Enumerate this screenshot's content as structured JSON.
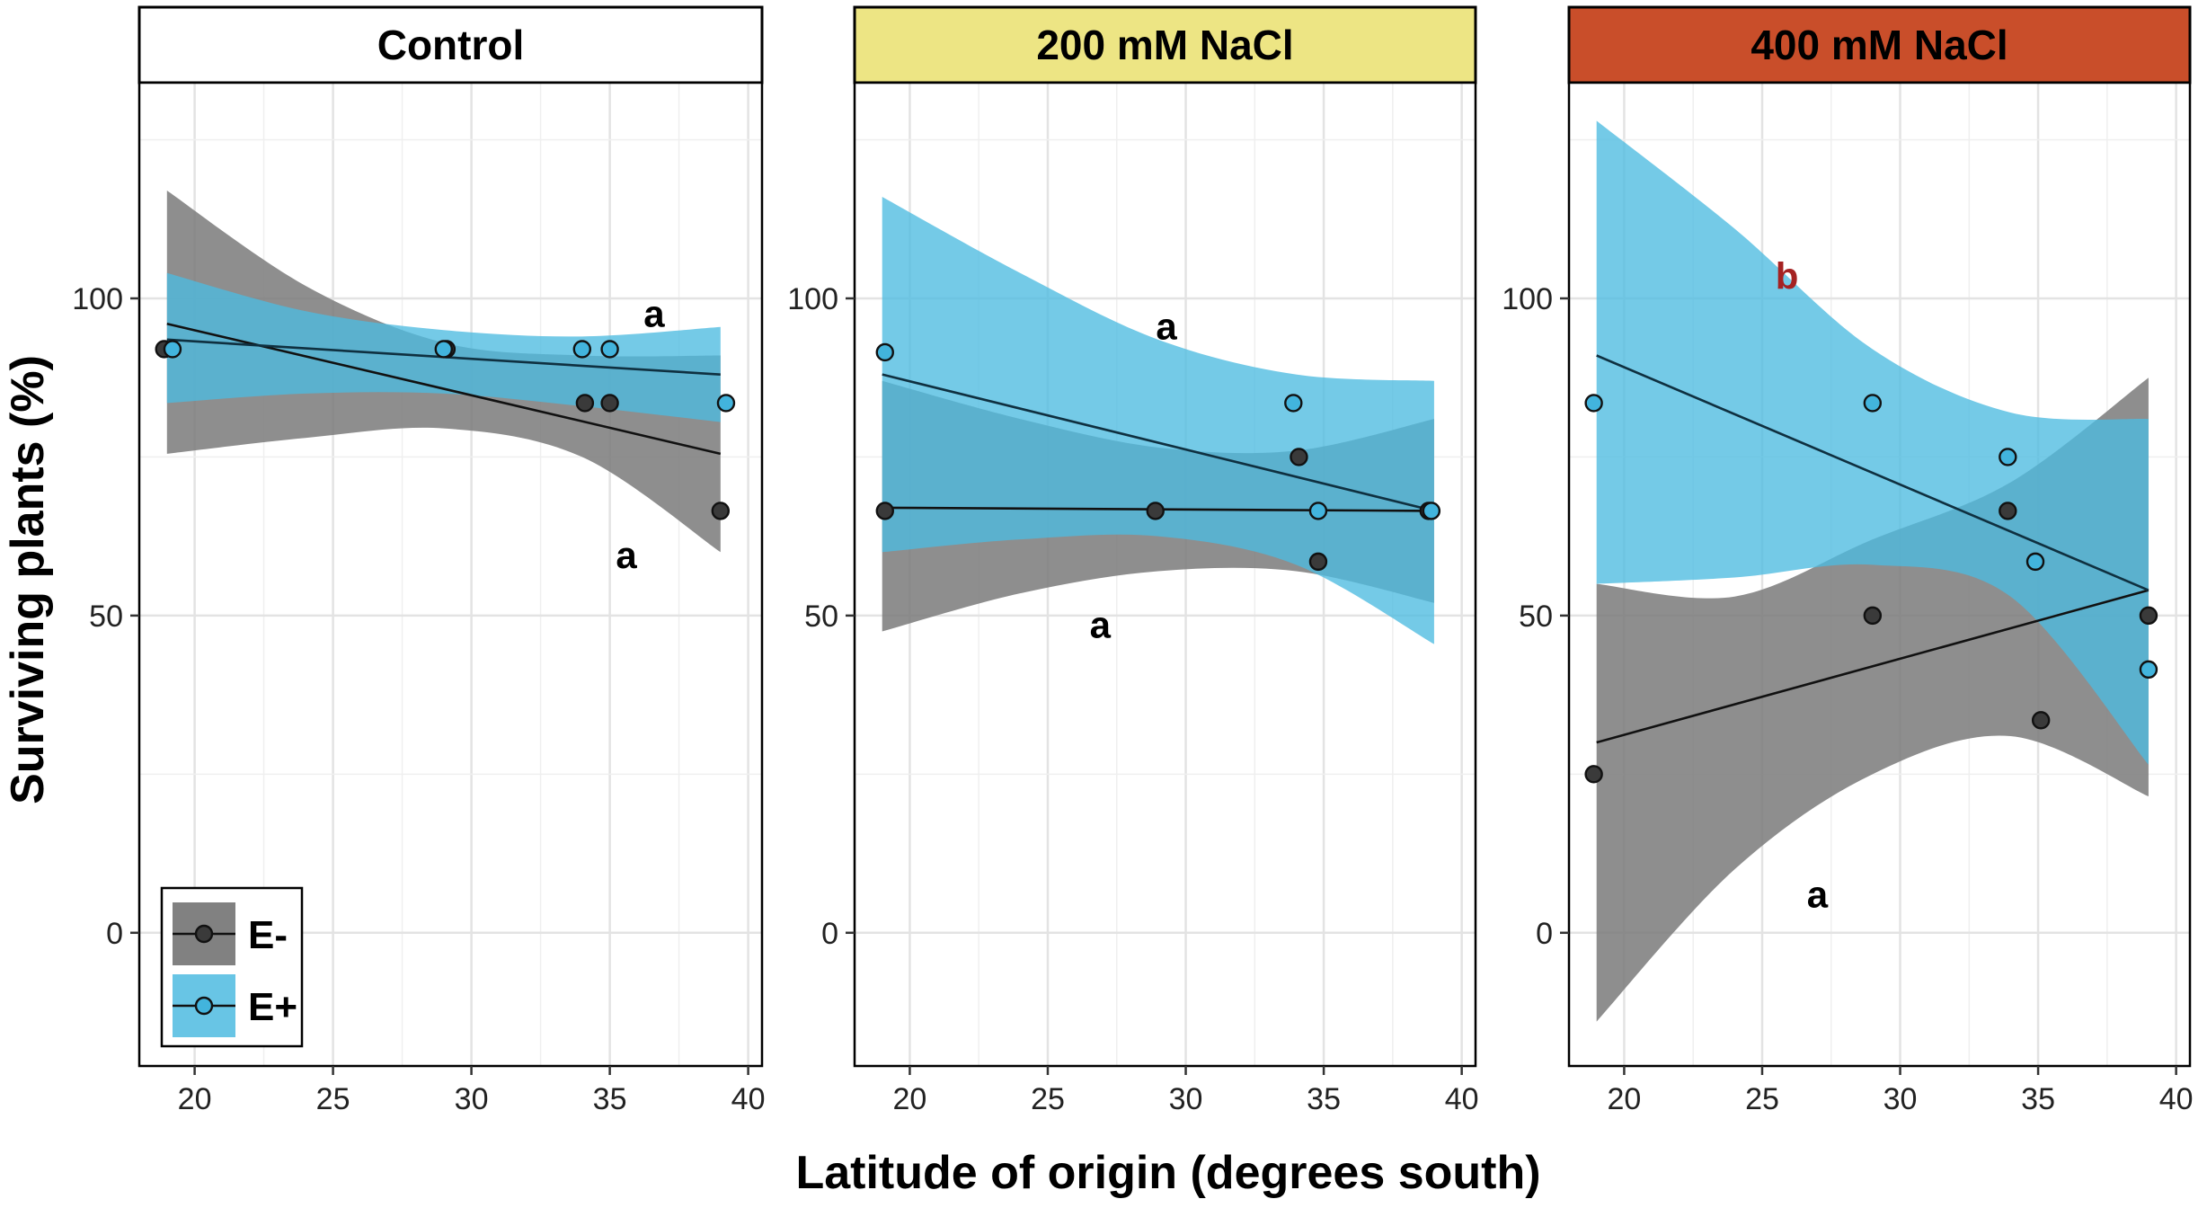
{
  "colors": {
    "e_minus_band": "#7a7a7a",
    "e_plus_band": "#4dbbe0",
    "e_minus_point": "#3a3a3a",
    "e_plus_point": "#42b4dd",
    "strip_control": "#ffffff",
    "strip_200": "#ede584",
    "strip_400": "#c94e2a",
    "annot_black": "#000000",
    "annot_red": "#a52222"
  },
  "chart_data": {
    "type": "scatter",
    "title": "",
    "xlabel": "Latitude of origin (degrees south)",
    "ylabel": "Surviving plants (%)",
    "xlim": [
      18,
      40.5
    ],
    "ylim": [
      -21,
      134
    ],
    "x_ticks": [
      20,
      25,
      30,
      35,
      40
    ],
    "y_ticks": [
      0,
      50,
      100
    ],
    "legend": {
      "position": "bottom-left",
      "entries": [
        {
          "label": "E-",
          "series": "E-"
        },
        {
          "label": "E+",
          "series": "E+"
        }
      ]
    },
    "panels": [
      {
        "strip": "Control",
        "strip_color": "#ffffff",
        "strip_text_color": "#000000",
        "series": [
          {
            "name": "E-",
            "points": [
              [
                18.9,
                92
              ],
              [
                29.1,
                92
              ],
              [
                34.1,
                83.5
              ],
              [
                35.0,
                83.5
              ],
              [
                39.0,
                66.5
              ]
            ],
            "fit": [
              [
                19.0,
                96
              ],
              [
                39.0,
                75.5
              ]
            ],
            "ci": {
              "x": [
                19,
                24,
                29,
                34,
                39
              ],
              "lower": [
                75.5,
                78,
                79.5,
                75,
                60
              ],
              "upper": [
                117,
                102,
                93,
                91,
                91
              ]
            }
          },
          {
            "name": "E+",
            "points": [
              [
                19.2,
                92
              ],
              [
                29.0,
                92
              ],
              [
                34.0,
                92
              ],
              [
                35.0,
                92
              ],
              [
                39.2,
                83.5
              ]
            ],
            "fit": [
              [
                19.0,
                93.5
              ],
              [
                39.0,
                88
              ]
            ],
            "ci": {
              "x": [
                19,
                24,
                29,
                34,
                39
              ],
              "lower": [
                83.5,
                85,
                85,
                83,
                80.5
              ],
              "upper": [
                104,
                98,
                95,
                94,
                95.5
              ]
            }
          }
        ],
        "annotations": [
          {
            "text": "a",
            "x": 36.6,
            "y": 97.5,
            "color": "#000000"
          },
          {
            "text": "a",
            "x": 35.6,
            "y": 59.5,
            "color": "#000000"
          }
        ]
      },
      {
        "strip": "200 mM NaCl",
        "strip_color": "#ede584",
        "strip_text_color": "#000000",
        "series": [
          {
            "name": "E-",
            "points": [
              [
                19.1,
                66.5
              ],
              [
                28.9,
                66.5
              ],
              [
                34.1,
                75
              ],
              [
                34.8,
                58.5
              ],
              [
                38.8,
                66.5
              ]
            ],
            "fit": [
              [
                19.0,
                67
              ],
              [
                39.0,
                66.5
              ]
            ],
            "ci": {
              "x": [
                19,
                24,
                29,
                34,
                39
              ],
              "lower": [
                47.5,
                53.5,
                57,
                57,
                52
              ],
              "upper": [
                87,
                81,
                76.5,
                76,
                81
              ]
            }
          },
          {
            "name": "E+",
            "points": [
              [
                19.1,
                91.5
              ],
              [
                33.9,
                83.5
              ],
              [
                34.8,
                66.5
              ],
              [
                38.9,
                66.5
              ]
            ],
            "fit": [
              [
                19.0,
                88
              ],
              [
                39.0,
                66.5
              ]
            ],
            "ci": {
              "x": [
                19,
                24,
                29,
                34,
                39
              ],
              "lower": [
                60,
                62,
                62.5,
                58,
                45.5
              ],
              "upper": [
                116,
                104,
                93.5,
                88,
                87
              ]
            }
          }
        ],
        "annotations": [
          {
            "text": "a",
            "x": 29.3,
            "y": 95.5,
            "color": "#000000"
          },
          {
            "text": "a",
            "x": 26.9,
            "y": 48.5,
            "color": "#000000"
          }
        ]
      },
      {
        "strip": "400 mM NaCl",
        "strip_color": "#c94e2a",
        "strip_text_color": "#000000",
        "series": [
          {
            "name": "E-",
            "points": [
              [
                18.9,
                25
              ],
              [
                29.0,
                50
              ],
              [
                33.9,
                66.5
              ],
              [
                35.1,
                33.5
              ],
              [
                39.0,
                50
              ]
            ],
            "fit": [
              [
                19.0,
                30
              ],
              [
                39.0,
                54
              ]
            ],
            "ci": {
              "x": [
                19,
                24,
                29,
                34,
                39
              ],
              "lower": [
                -14,
                10,
                25,
                31,
                21.5
              ],
              "upper": [
                55,
                53,
                62,
                71,
                87.5
              ]
            }
          },
          {
            "name": "E+",
            "points": [
              [
                18.9,
                83.5
              ],
              [
                29.0,
                83.5
              ],
              [
                33.9,
                75
              ],
              [
                34.9,
                58.5
              ],
              [
                39.0,
                41.5
              ]
            ],
            "fit": [
              [
                19.0,
                91
              ],
              [
                39.0,
                54
              ]
            ],
            "ci": {
              "x": [
                19,
                24,
                29,
                34,
                39
              ],
              "lower": [
                55,
                56,
                58,
                53,
                26.5
              ],
              "upper": [
                128,
                111,
                92,
                82,
                81
              ]
            }
          }
        ],
        "annotations": [
          {
            "text": "b",
            "x": 25.9,
            "y": 103.5,
            "color": "#a52222"
          },
          {
            "text": "a",
            "x": 27.0,
            "y": 6,
            "color": "#000000"
          }
        ]
      }
    ]
  }
}
